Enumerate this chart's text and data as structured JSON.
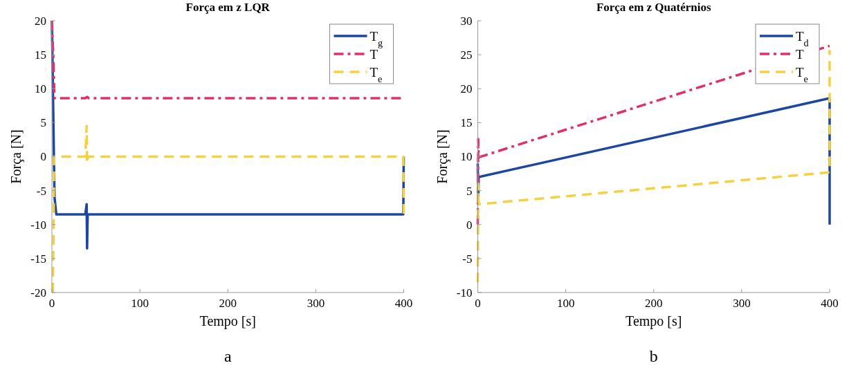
{
  "chart_data": [
    {
      "type": "line",
      "title": "Força em z LQR",
      "xlabel": "Tempo [s]",
      "ylabel": "Força [N]",
      "xlim": [
        0,
        400
      ],
      "xticks": [
        0,
        100,
        200,
        300,
        400
      ],
      "ylim": [
        -20,
        20
      ],
      "yticks": [
        -20,
        -15,
        -10,
        -5,
        0,
        5,
        10,
        15,
        20
      ],
      "grid": false,
      "legend": "top right",
      "annotations": [
        "a"
      ],
      "series": [
        {
          "name": "T$_{g}$",
          "color": "#1c47a0",
          "line_style": "solid",
          "x": [
            0,
            3,
            5,
            38,
            39.5,
            40,
            40.7,
            42,
            399.5,
            400
          ],
          "values": [
            20,
            -6,
            -8.5,
            -8.5,
            -7,
            -13.5,
            -8.5,
            -8.5,
            -8.5,
            0
          ]
        },
        {
          "name": "T",
          "color": "#e0306a",
          "line_style": "dotted",
          "x": [
            0,
            1.5,
            3,
            38,
            40,
            42,
            400
          ],
          "values": [
            20,
            15,
            8.6,
            8.6,
            8.8,
            8.6,
            8.6
          ]
        },
        {
          "name": "T$_{e}$",
          "color": "#f5d142",
          "line_style": "dashed",
          "x": [
            1,
            2,
            2.5,
            38,
            39.5,
            40,
            41,
            399.5,
            400
          ],
          "values": [
            -20,
            -10,
            0,
            0,
            4.5,
            -1,
            0,
            0,
            -8.5
          ]
        }
      ]
    },
    {
      "type": "line",
      "title": "Força em z Quatérnios",
      "xlabel": "Tempo [s]",
      "ylabel": "Força [N]",
      "xlim": [
        0,
        400
      ],
      "xticks": [
        0,
        100,
        200,
        300,
        400
      ],
      "ylim": [
        -10,
        30
      ],
      "yticks": [
        -10,
        -5,
        0,
        5,
        10,
        15,
        20,
        25,
        30
      ],
      "grid": false,
      "legend": "top right",
      "annotations": [
        "b"
      ],
      "series": [
        {
          "name": "T$_{d}$",
          "color": "#1c47a0",
          "line_style": "solid",
          "x": [
            0,
            0.5,
            1,
            400,
            400
          ],
          "values": [
            9,
            3,
            7,
            18.6,
            0
          ]
        },
        {
          "name": "T",
          "color": "#e0306a",
          "line_style": "dotted",
          "x": [
            0,
            0.5,
            1,
            400
          ],
          "values": [
            0,
            12.6,
            9.9,
            26.3
          ]
        },
        {
          "name": "T$_{e}$",
          "color": "#f5d142",
          "line_style": "dashed",
          "x": [
            0,
            0.5,
            1,
            400,
            400
          ],
          "values": [
            -8.5,
            6,
            3,
            7.7,
            25.7
          ]
        }
      ]
    }
  ]
}
